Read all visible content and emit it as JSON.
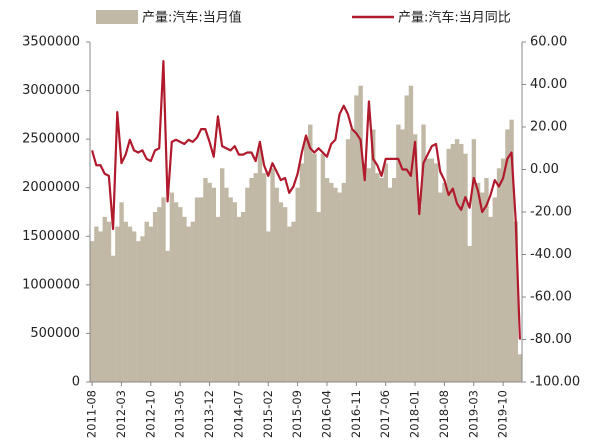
{
  "chart_data": {
    "type": "bar_line",
    "categories": [
      "2011-08",
      null,
      null,
      null,
      null,
      null,
      null,
      "2012-03",
      null,
      null,
      null,
      null,
      null,
      null,
      "2012-10",
      null,
      null,
      null,
      null,
      null,
      null,
      "2013-05",
      null,
      null,
      null,
      null,
      null,
      null,
      "2013-12",
      null,
      null,
      null,
      null,
      null,
      null,
      "2014-07",
      null,
      null,
      null,
      null,
      null,
      null,
      "2015-02",
      null,
      null,
      null,
      null,
      null,
      null,
      "2015-09",
      null,
      null,
      null,
      null,
      null,
      null,
      "2016-04",
      null,
      null,
      null,
      null,
      null,
      null,
      "2016-11",
      null,
      null,
      null,
      null,
      null,
      null,
      "2017-06",
      null,
      null,
      null,
      null,
      null,
      null,
      "2018-01",
      null,
      null,
      null,
      null,
      null,
      null,
      "2018-08",
      null,
      null,
      null,
      null,
      null,
      null,
      "2019-03",
      null,
      null,
      null,
      null,
      null,
      null,
      "2019-10",
      null,
      null,
      null,
      null
    ],
    "series": [
      {
        "name": "产量:汽车:当月值",
        "color": "#c2b8a6",
        "axis": "y",
        "values": [
          1450000,
          1600000,
          1550000,
          1700000,
          1650000,
          1300000,
          1600000,
          1850000,
          1650000,
          1600000,
          1550000,
          1450000,
          1500000,
          1650000,
          1600000,
          1750000,
          1800000,
          1900000,
          1350000,
          1950000,
          1850000,
          1800000,
          1700000,
          1600000,
          1650000,
          1900000,
          1900000,
          2100000,
          2050000,
          2000000,
          1700000,
          2200000,
          2000000,
          1900000,
          1850000,
          1700000,
          1750000,
          2000000,
          2100000,
          2150000,
          2400000,
          2150000,
          1550000,
          2200000,
          2000000,
          1850000,
          1800000,
          1600000,
          1650000,
          2000000,
          2250000,
          2500000,
          2650000,
          2350000,
          1750000,
          2350000,
          2100000,
          2050000,
          2000000,
          1950000,
          2050000,
          2500000,
          2600000,
          2950000,
          3050000,
          2250000,
          2200000,
          2600000,
          2150000,
          2100000,
          2250000,
          2000000,
          2100000,
          2650000,
          2600000,
          2950000,
          3050000,
          2550000,
          1800000,
          2650000,
          2300000,
          2300000,
          2250000,
          1950000,
          2050000,
          2400000,
          2450000,
          2500000,
          2450000,
          2350000,
          1400000,
          2500000,
          2050000,
          1950000,
          2100000,
          1700000,
          1900000,
          2200000,
          2300000,
          2600000,
          2700000,
          1650000,
          285000
        ]
      },
      {
        "name": "产量:汽车:当月同比",
        "color": "#b01a2c",
        "axis": "y2",
        "values": [
          9,
          2,
          2,
          -2,
          -3,
          -28,
          27,
          3,
          7,
          14,
          9,
          8,
          9,
          5,
          4,
          9,
          10,
          51,
          -15,
          13,
          14,
          13,
          12,
          14,
          13,
          15,
          19,
          19,
          13,
          6,
          25,
          11,
          10,
          9,
          11,
          7,
          7,
          8,
          8,
          4,
          13,
          2,
          -3,
          3,
          -1,
          -5,
          -4,
          -11,
          -8,
          -2,
          8,
          16,
          10,
          8,
          10,
          8,
          6,
          12,
          14,
          26,
          30,
          26,
          19,
          17,
          14,
          -5,
          32,
          5,
          2,
          -3,
          5,
          5,
          5,
          5,
          0,
          0,
          -3,
          13,
          -21,
          3,
          7,
          11,
          12,
          -1,
          -5,
          -12,
          -9,
          -16,
          -19,
          -13,
          -18,
          -4,
          -10,
          -20,
          -17,
          -12,
          -5,
          -8,
          -4,
          5,
          8,
          -24,
          -80
        ]
      }
    ],
    "ylim": [
      0,
      3500000
    ],
    "yticks": [
      0,
      500000,
      1000000,
      1500000,
      2000000,
      2500000,
      3000000,
      3500000
    ],
    "y2lim": [
      -100,
      60
    ],
    "y2ticks": [
      {
        "value": 60,
        "label": "60.00"
      },
      {
        "value": 40,
        "label": "40.00"
      },
      {
        "value": 20,
        "label": "20.00"
      },
      {
        "value": 0,
        "label": "0.00"
      },
      {
        "value": -20,
        "label": "-20.00"
      },
      {
        "value": -40,
        "label": "-40.00"
      },
      {
        "value": -60,
        "label": "-60.00"
      },
      {
        "value": -80,
        "label": "-80.00"
      },
      {
        "value": -100,
        "label": "-100.00"
      }
    ],
    "legend": "top"
  }
}
